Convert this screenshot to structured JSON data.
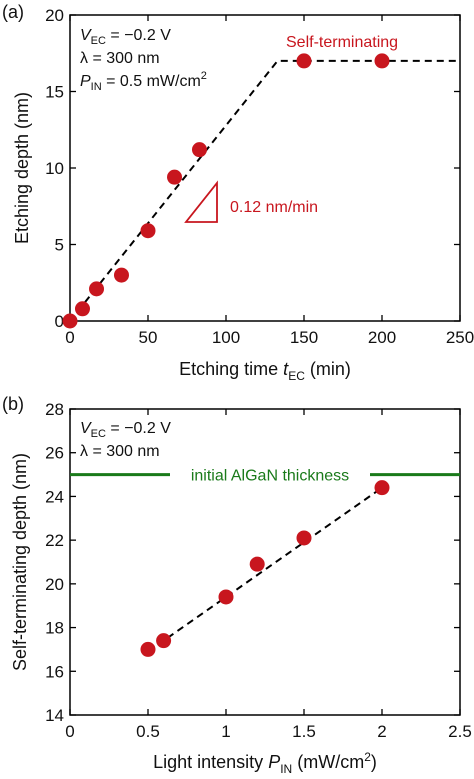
{
  "chart_data": [
    {
      "type": "scatter",
      "panel_label": "(a)",
      "xlabel": "Etching time",
      "xlabel_sym": "t",
      "xlabel_sub": "EC",
      "xlabel_unit": "(min)",
      "ylabel": "Etching depth (nm)",
      "xlim": [
        0,
        250
      ],
      "ylim": [
        0,
        20
      ],
      "xticks": [
        0,
        50,
        100,
        150,
        200,
        250
      ],
      "yticks": [
        0,
        5,
        10,
        15,
        20
      ],
      "xtick_labels": [
        "0",
        "50",
        "100",
        "150",
        "200",
        "250"
      ],
      "ytick_labels": [
        "0",
        "5",
        "10",
        "15",
        "20"
      ],
      "grid": false,
      "conditions": {
        "v_sym": "V",
        "v_sub": "EC",
        "v_val": " = −0.2 V",
        "lambda": "λ = 300 nm",
        "p_sym": "P",
        "p_sub": "IN",
        "p_val": " = 0.5 mW/cm",
        "p_sup": "2"
      },
      "series": [
        {
          "x": [
            0,
            8,
            17,
            33,
            50,
            67,
            83,
            150,
            200
          ],
          "y": [
            0,
            0.8,
            2.1,
            3.0,
            5.9,
            9.4,
            11.2,
            17.0,
            17.0
          ],
          "color": "#c8161e"
        }
      ],
      "fit_line": {
        "x": [
          0,
          133,
          250
        ],
        "y": [
          0,
          17.0,
          17.0
        ]
      },
      "annotations": {
        "saturation": "Self-terminating",
        "slope": "0.12 nm/min"
      },
      "accent_color": "#c8161e"
    },
    {
      "type": "scatter",
      "panel_label": "(b)",
      "xlabel": "Light intensity",
      "xlabel_sym": "P",
      "xlabel_sub": "IN",
      "xlabel_unit": "(mW/cm",
      "xlabel_sup": "2",
      "xlabel_close": ")",
      "ylabel": "Self-terminating depth (nm)",
      "xlim": [
        0,
        2.5
      ],
      "ylim": [
        14,
        28
      ],
      "xticks": [
        0,
        0.5,
        1,
        1.5,
        2,
        2.5
      ],
      "yticks": [
        14,
        16,
        18,
        20,
        22,
        24,
        26,
        28
      ],
      "xtick_labels": [
        "0",
        "0.5",
        "1",
        "1.5",
        "2",
        "2.5"
      ],
      "ytick_labels": [
        "14",
        "16",
        "18",
        "20",
        "22",
        "24",
        "26",
        "28"
      ],
      "grid": false,
      "conditions": {
        "v_sym": "V",
        "v_sub": "EC",
        "v_val": " = −0.2 V",
        "lambda": "λ = 300 nm"
      },
      "series": [
        {
          "x": [
            0.5,
            0.6,
            1.0,
            1.2,
            1.5,
            2.0
          ],
          "y": [
            17.0,
            17.4,
            19.4,
            20.9,
            22.1,
            24.4
          ],
          "color": "#c8161e"
        }
      ],
      "fit_line": {
        "x": [
          0.5,
          2.0
        ],
        "y": [
          16.9,
          24.4
        ]
      },
      "reference_line": {
        "y": 25,
        "label": "initial AlGaN thickness",
        "color": "#1a7a1a"
      }
    }
  ]
}
